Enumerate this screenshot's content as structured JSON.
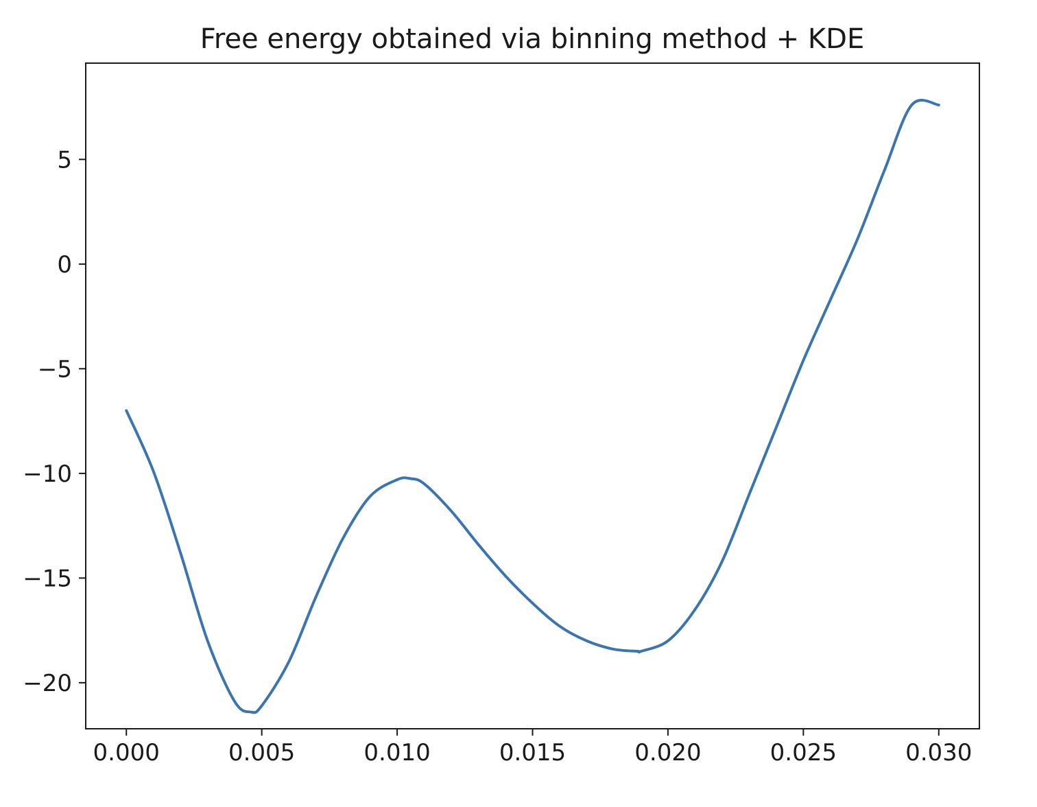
{
  "chart_data": {
    "type": "line",
    "title": "Free energy obtained via binning method + KDE",
    "xlabel": "",
    "ylabel": "",
    "xlim": [
      -0.0015,
      0.0315
    ],
    "ylim": [
      -22.2,
      9.6
    ],
    "x_ticks": [
      0.0,
      0.005,
      0.01,
      0.015,
      0.02,
      0.025,
      0.03
    ],
    "x_tick_labels": [
      "0.000",
      "0.005",
      "0.010",
      "0.015",
      "0.020",
      "0.025",
      "0.030"
    ],
    "y_ticks": [
      5,
      0,
      -5,
      -10,
      -15,
      -20
    ],
    "y_tick_labels": [
      "5",
      "0",
      "−5",
      "−10",
      "−15",
      "−20"
    ],
    "grid": false,
    "series": [
      {
        "color": "#3a75b0",
        "x": [
          0.0,
          0.001,
          0.002,
          0.003,
          0.004,
          0.0046,
          0.005,
          0.006,
          0.007,
          0.008,
          0.009,
          0.01,
          0.0105,
          0.011,
          0.012,
          0.013,
          0.014,
          0.015,
          0.016,
          0.017,
          0.018,
          0.0189,
          0.019,
          0.02,
          0.021,
          0.022,
          0.023,
          0.024,
          0.025,
          0.026,
          0.027,
          0.028,
          0.029,
          0.03
        ],
        "y": [
          -7.0,
          -9.9,
          -13.8,
          -18.0,
          -20.9,
          -21.4,
          -21.1,
          -19.0,
          -15.9,
          -13.1,
          -11.1,
          -10.3,
          -10.25,
          -10.5,
          -11.8,
          -13.4,
          -14.9,
          -16.2,
          -17.3,
          -18.0,
          -18.4,
          -18.5,
          -18.5,
          -18.0,
          -16.5,
          -14.2,
          -11.0,
          -7.8,
          -4.6,
          -1.7,
          1.2,
          4.5,
          7.6,
          7.6
        ]
      }
    ]
  }
}
